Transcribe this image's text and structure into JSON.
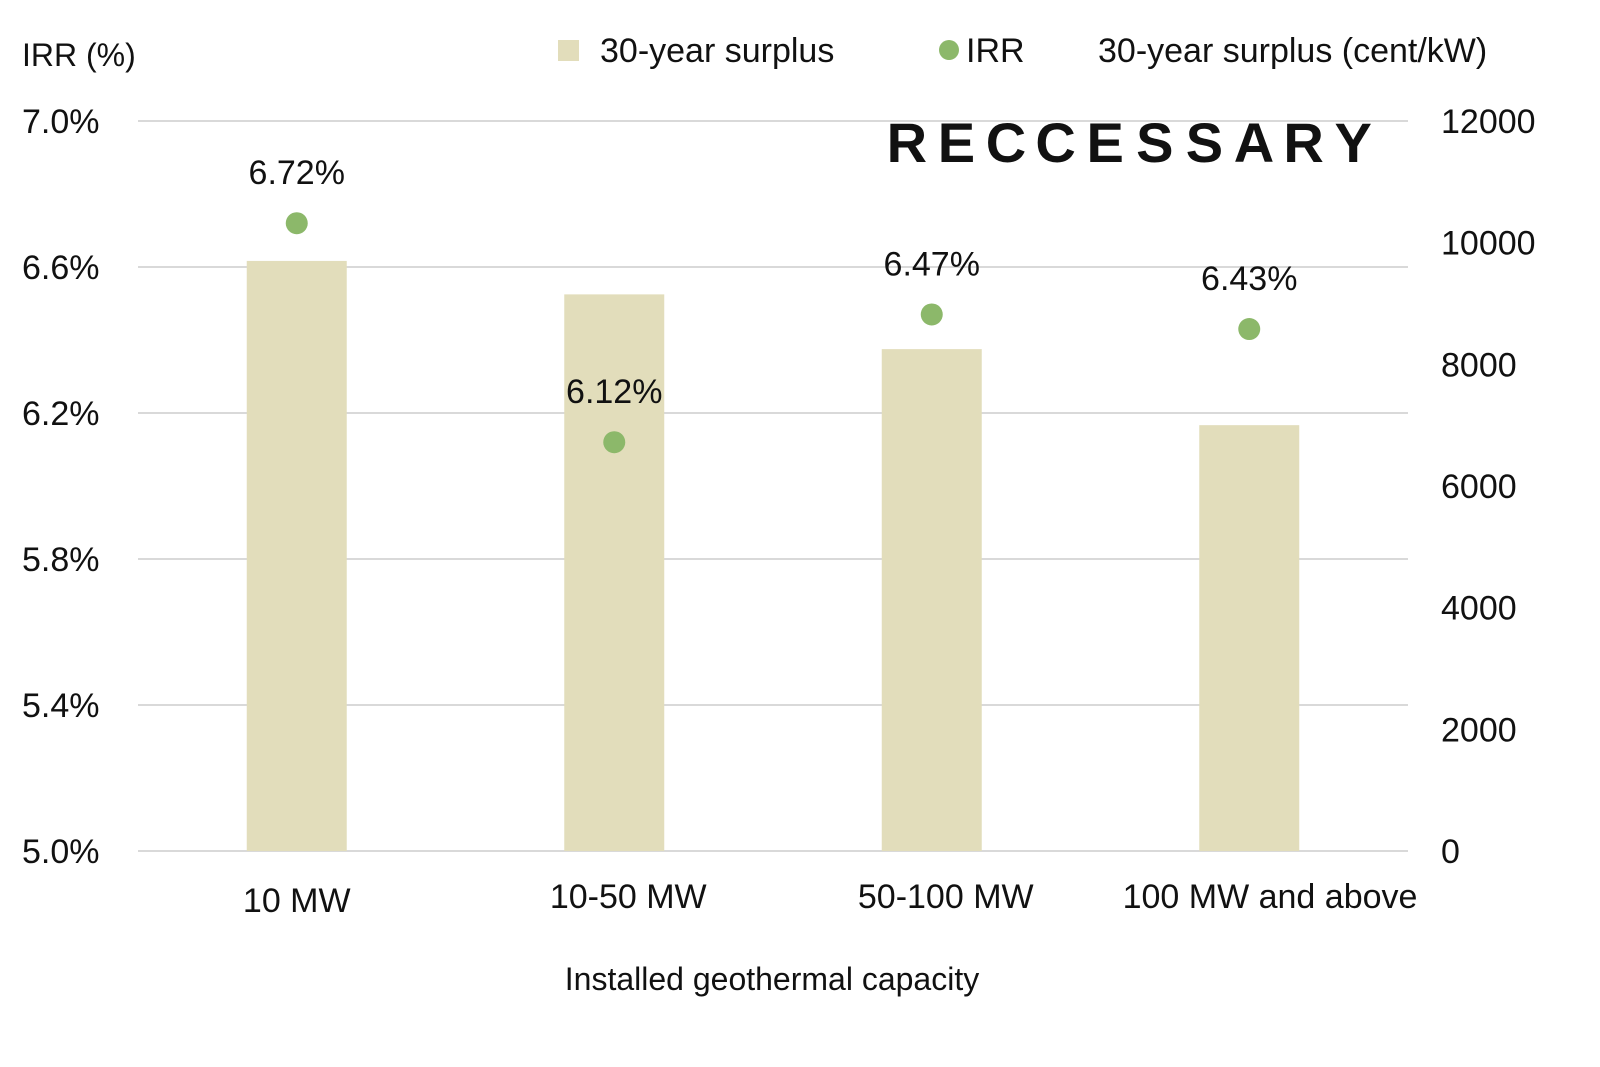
{
  "chart_data": {
    "type": "bar",
    "xlabel": "Installed geothermal capacity",
    "ylabel_left": "IRR (%)",
    "ylabel_right": "30-year surplus (cent/kW)",
    "categories": [
      "10 MW",
      "10-50 MW",
      "50-100 MW",
      "100 MW and above"
    ],
    "series": [
      {
        "name": "30-year surplus",
        "kind": "bar",
        "axis": "right",
        "color": "#e2ddbb",
        "values": [
          9700,
          9150,
          8250,
          7000
        ]
      },
      {
        "name": "IRR",
        "kind": "scatter",
        "axis": "left",
        "color": "#8cb86a",
        "values": [
          6.72,
          6.12,
          6.47,
          6.43
        ],
        "labels": [
          "6.72%",
          "6.12%",
          "6.47%",
          "6.43%"
        ]
      }
    ],
    "ylim_left": [
      5.0,
      7.0
    ],
    "yticks_left": [
      "5.0%",
      "5.4%",
      "5.8%",
      "6.2%",
      "6.6%",
      "7.0%"
    ],
    "ylim_right": [
      0,
      12000
    ],
    "yticks_right": [
      "0",
      "2000",
      "4000",
      "6000",
      "8000",
      "10000",
      "12000"
    ],
    "grid": true,
    "legend_position": "top"
  },
  "watermark": {
    "text": "RECCESSARY",
    "colors": [
      "#7db36a",
      "#7db36a",
      "#7db36a",
      "#b5b5b5",
      "#555555",
      "#555555",
      "#555555",
      "#555555",
      "#555555",
      "#555555"
    ]
  }
}
